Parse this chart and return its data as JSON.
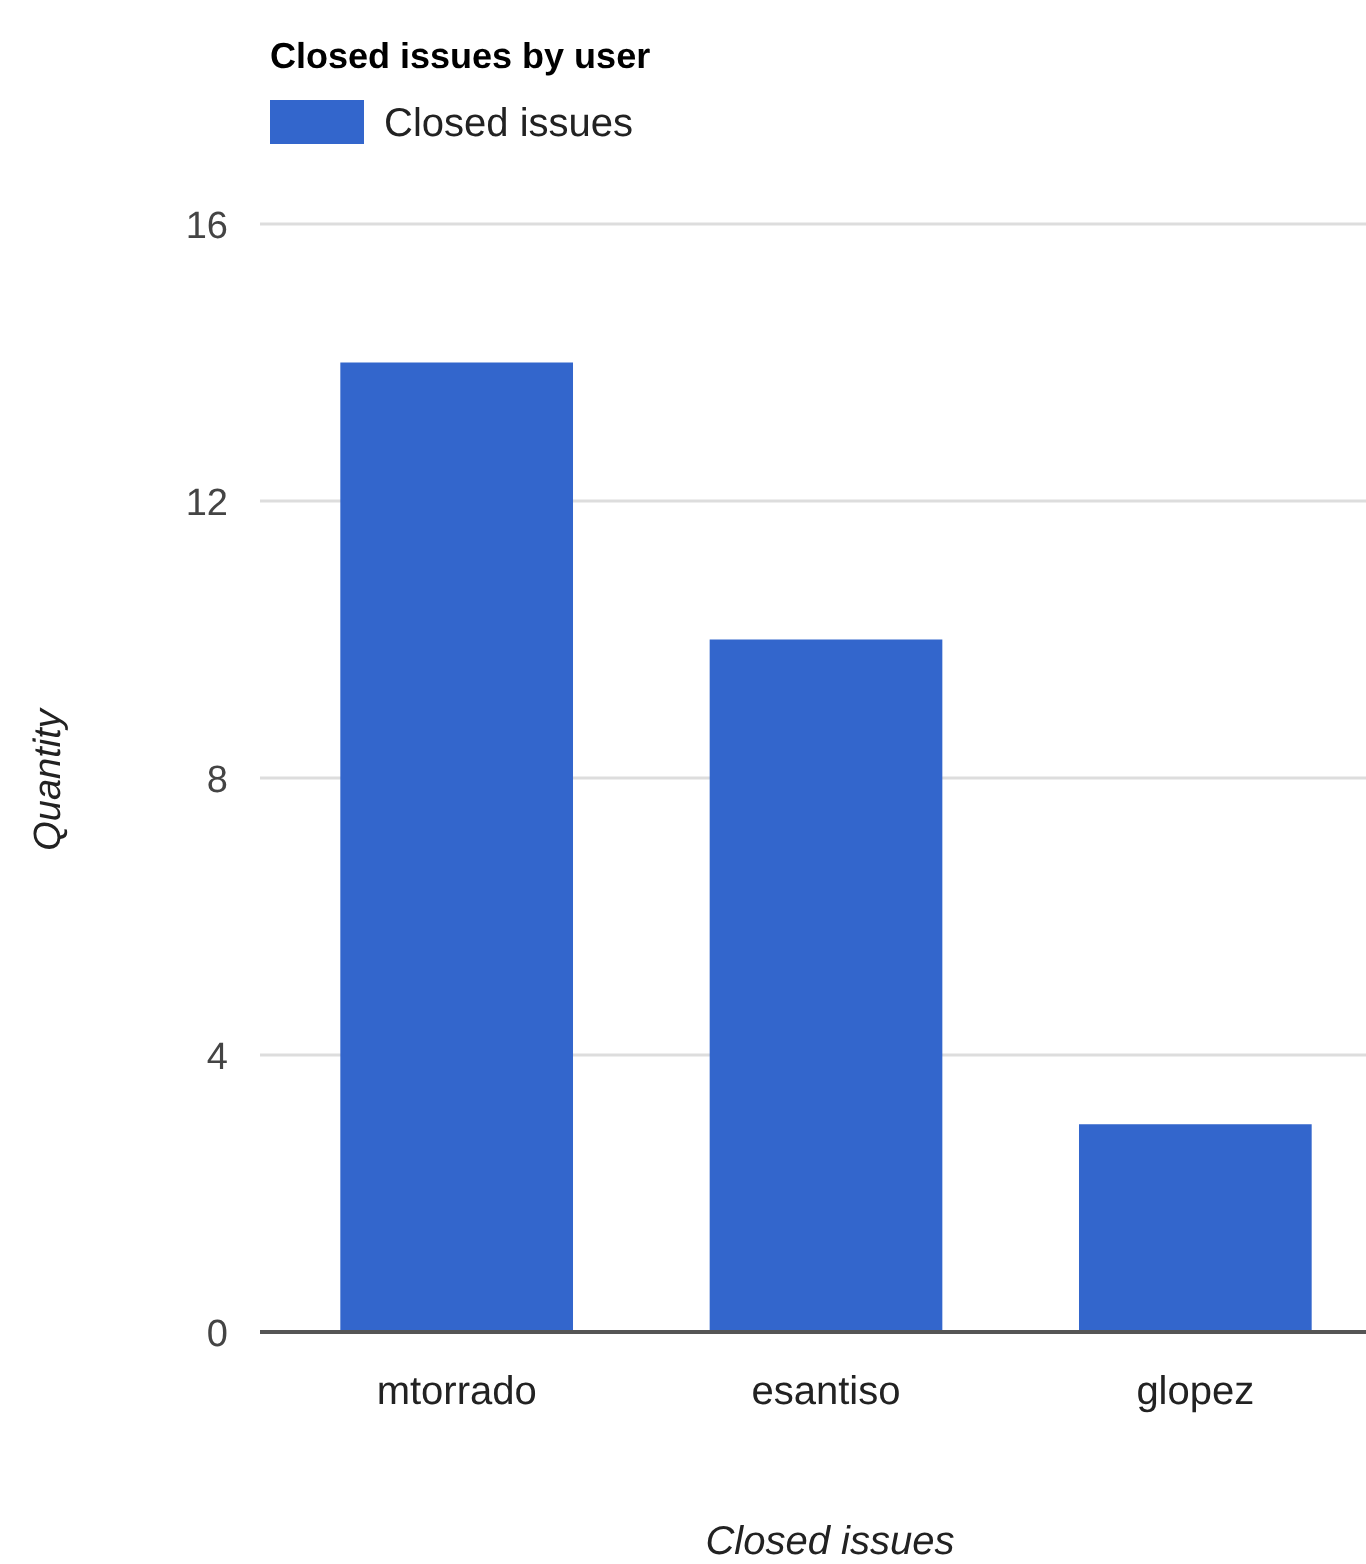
{
  "chart_data": {
    "type": "bar",
    "title": "Closed issues by user",
    "xlabel": "Closed issues",
    "ylabel": "Quantity",
    "categories": [
      "mtorrado",
      "esantiso",
      "glopez"
    ],
    "series": [
      {
        "name": "Closed issues",
        "color": "#3366cc",
        "values": [
          14,
          10,
          3
        ]
      }
    ],
    "ylim": [
      0,
      16
    ],
    "yticks": [
      0,
      4,
      8,
      12,
      16
    ],
    "grid": "y",
    "legend": "top"
  }
}
